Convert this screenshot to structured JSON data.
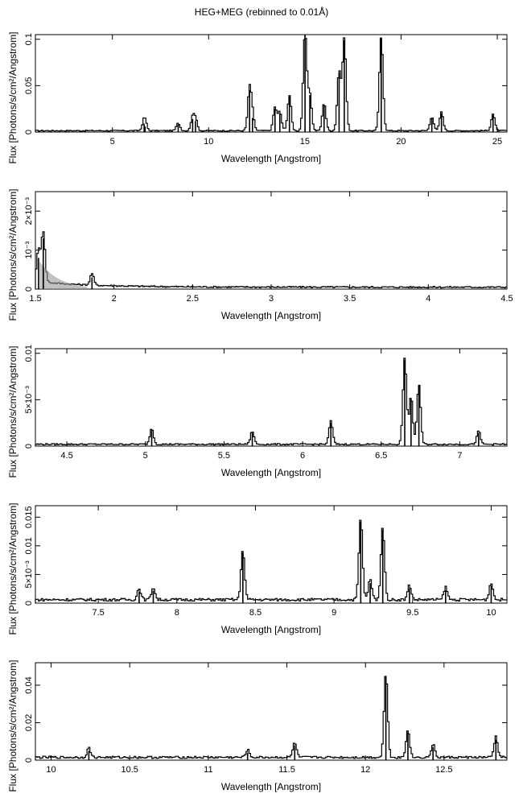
{
  "title": "HEG+MEG (rebinned to 0.01Å)",
  "chart_data": [
    {
      "type": "line",
      "xlabel": "Wavelength [Angstrom]",
      "ylabel": "Flux [Photons/s/cm²/Angstrom]",
      "xlim": [
        1.0,
        25.5
      ],
      "ylim": [
        0,
        0.105
      ],
      "xticks": [
        5,
        10,
        15,
        20,
        25
      ],
      "xtick_labels": [
        "5",
        "10",
        "15",
        "20",
        "25"
      ],
      "yticks": [
        0,
        0.05,
        0.1
      ],
      "ytick_labels": [
        "0",
        "0.05",
        "0.1"
      ],
      "baseline": 0.0015,
      "peaks": [
        {
          "x": 6.65,
          "y": 0.009
        },
        {
          "x": 6.7,
          "y": 0.006
        },
        {
          "x": 8.42,
          "y": 0.008
        },
        {
          "x": 9.17,
          "y": 0.014
        },
        {
          "x": 9.32,
          "y": 0.012
        },
        {
          "x": 12.13,
          "y": 0.045
        },
        {
          "x": 12.28,
          "y": 0.015
        },
        {
          "x": 13.45,
          "y": 0.025
        },
        {
          "x": 13.7,
          "y": 0.02
        },
        {
          "x": 14.2,
          "y": 0.038
        },
        {
          "x": 15.01,
          "y": 0.105
        },
        {
          "x": 15.26,
          "y": 0.04
        },
        {
          "x": 16.0,
          "y": 0.03
        },
        {
          "x": 16.78,
          "y": 0.064
        },
        {
          "x": 17.05,
          "y": 0.099
        },
        {
          "x": 18.97,
          "y": 0.101
        },
        {
          "x": 21.6,
          "y": 0.015
        },
        {
          "x": 22.1,
          "y": 0.02
        },
        {
          "x": 24.78,
          "y": 0.018
        }
      ]
    },
    {
      "type": "line",
      "xlabel": "Wavelength [Angstrom]",
      "ylabel": "Flux [Photons/s/cm²/Angstrom]",
      "xlim": [
        1.5,
        4.5
      ],
      "ylim": [
        0,
        0.0025
      ],
      "xticks": [
        1.5,
        2,
        2.5,
        3,
        3.5,
        4,
        4.5
      ],
      "xtick_labels": [
        "1.5",
        "2",
        "2.5",
        "3",
        "3.5",
        "4",
        "4.5"
      ],
      "yticks": [
        0,
        0.001,
        0.002
      ],
      "ytick_labels": [
        "0",
        "10⁻³",
        "2×10⁻³"
      ],
      "baseline": 5e-05,
      "peaks": [
        {
          "x": 1.52,
          "y": 0.0008
        },
        {
          "x": 1.55,
          "y": 0.0013
        },
        {
          "x": 1.86,
          "y": 0.0003
        }
      ]
    },
    {
      "type": "line",
      "xlabel": "Wavelength [Angstrom]",
      "ylabel": "Flux [Photons/s/cm²/Angstrom]",
      "xlim": [
        4.3,
        7.3
      ],
      "ylim": [
        0,
        0.0105
      ],
      "xticks": [
        4.5,
        5,
        5.5,
        6,
        6.5,
        7
      ],
      "xtick_labels": [
        "4.5",
        "5",
        "5.5",
        "6",
        "6.5",
        "7"
      ],
      "yticks": [
        0,
        0.005,
        0.01
      ],
      "ytick_labels": [
        "0",
        "5×10⁻³",
        "0.01"
      ],
      "baseline": 0.0002,
      "peaks": [
        {
          "x": 5.04,
          "y": 0.0017
        },
        {
          "x": 5.68,
          "y": 0.0014
        },
        {
          "x": 6.18,
          "y": 0.0025
        },
        {
          "x": 6.65,
          "y": 0.0093
        },
        {
          "x": 6.69,
          "y": 0.0051
        },
        {
          "x": 6.74,
          "y": 0.0065
        },
        {
          "x": 7.12,
          "y": 0.0014
        }
      ]
    },
    {
      "type": "line",
      "xlabel": "Wavelength [Angstrom]",
      "ylabel": "Flux [Photons/s/cm²/Angstrom]",
      "xlim": [
        7.1,
        10.1
      ],
      "ylim": [
        0,
        0.017
      ],
      "xticks": [
        7.5,
        8,
        8.5,
        9,
        9.5,
        10
      ],
      "xtick_labels": [
        "7.5",
        "8",
        "8.5",
        "9",
        "9.5",
        "10"
      ],
      "yticks": [
        0,
        0.005,
        0.01,
        0.015
      ],
      "ytick_labels": [
        "0",
        "5×10⁻³",
        "0.01",
        "0.015"
      ],
      "baseline": 0.0006,
      "peaks": [
        {
          "x": 7.76,
          "y": 0.002
        },
        {
          "x": 7.85,
          "y": 0.0022
        },
        {
          "x": 8.42,
          "y": 0.0088
        },
        {
          "x": 9.17,
          "y": 0.0142
        },
        {
          "x": 9.23,
          "y": 0.0035
        },
        {
          "x": 9.31,
          "y": 0.0128
        },
        {
          "x": 9.48,
          "y": 0.0025
        },
        {
          "x": 9.71,
          "y": 0.0022
        },
        {
          "x": 10.0,
          "y": 0.003
        }
      ]
    },
    {
      "type": "line",
      "xlabel": "Wavelength [Angstrom]",
      "ylabel": "Flux [Photons/s/cm²/Angstrom]",
      "xlim": [
        9.9,
        12.9
      ],
      "ylim": [
        0,
        0.052
      ],
      "xticks": [
        10,
        10.5,
        11,
        11.5,
        12,
        12.5
      ],
      "xtick_labels": [
        "10",
        "10.5",
        "11",
        "11.5",
        "12",
        "12.5"
      ],
      "yticks": [
        0,
        0.02,
        0.04
      ],
      "ytick_labels": [
        "0",
        "0.02",
        "0.04"
      ],
      "baseline": 0.0015,
      "peaks": [
        {
          "x": 10.24,
          "y": 0.005
        },
        {
          "x": 11.25,
          "y": 0.004
        },
        {
          "x": 11.55,
          "y": 0.008
        },
        {
          "x": 12.13,
          "y": 0.045
        },
        {
          "x": 12.27,
          "y": 0.015
        },
        {
          "x": 12.43,
          "y": 0.007
        },
        {
          "x": 12.83,
          "y": 0.011
        }
      ]
    }
  ]
}
